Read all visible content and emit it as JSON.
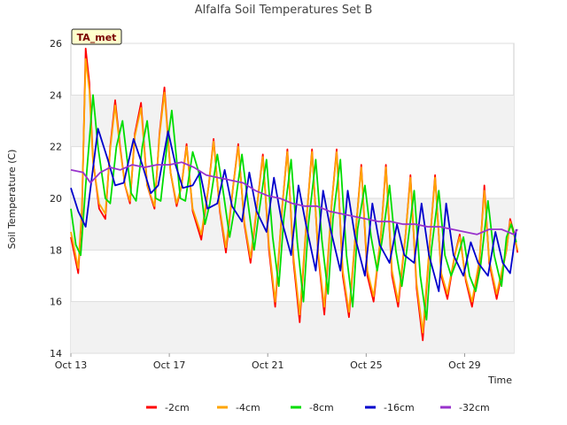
{
  "chart_data": {
    "type": "line",
    "title": "Alfalfa Soil Temperatures Set B",
    "xlabel": "Time",
    "ylabel": "Soil Temperature (C)",
    "site_tag": "TA_met",
    "xlim": [
      "Oct 13",
      "Oct 31"
    ],
    "ylim": [
      14,
      26
    ],
    "x_tick_labels": [
      "Oct 13",
      "Oct 17",
      "Oct 21",
      "Oct 25",
      "Oct 29"
    ],
    "y_tick_labels": [
      "14",
      "16",
      "18",
      "20",
      "22",
      "24",
      "26"
    ],
    "grid": true,
    "legend_position": "bottom",
    "x_unit": "days since Oct 13",
    "series": [
      {
        "name": "-2cm",
        "color": "#ff0000",
        "x": [
          0.0,
          0.15,
          0.3,
          0.45,
          0.6,
          0.75,
          0.9,
          1.15,
          1.4,
          1.6,
          1.8,
          2.0,
          2.2,
          2.4,
          2.6,
          2.85,
          3.1,
          3.4,
          3.6,
          3.8,
          4.05,
          4.3,
          4.5,
          4.7,
          4.95,
          5.3,
          5.6,
          5.8,
          6.05,
          6.3,
          6.6,
          6.8,
          7.05,
          7.3,
          7.6,
          7.8,
          8.05,
          8.3,
          8.6,
          8.8,
          9.05,
          9.3,
          9.6,
          9.8,
          10.05,
          10.3,
          10.6,
          10.8,
          11.05,
          11.3,
          11.6,
          11.8,
          12.05,
          12.3,
          12.6,
          12.8,
          13.05,
          13.3,
          13.6,
          13.8,
          14.05,
          14.3,
          14.6,
          14.8,
          15.05,
          15.3,
          15.6,
          15.8,
          16.05,
          16.3,
          16.6,
          16.8,
          17.0,
          17.3,
          17.7,
          17.85,
          18.0,
          18.15
        ],
        "values": [
          18.5,
          17.8,
          17.1,
          19.5,
          25.8,
          24.5,
          21.5,
          19.6,
          19.2,
          22.0,
          23.8,
          22.0,
          20.5,
          19.8,
          22.5,
          23.7,
          20.5,
          19.6,
          22.5,
          24.3,
          21.0,
          19.7,
          20.5,
          22.1,
          19.5,
          18.4,
          20.5,
          22.3,
          19.5,
          17.9,
          20.5,
          22.1,
          19.0,
          17.5,
          20.0,
          21.7,
          18.0,
          15.8,
          19.8,
          21.9,
          17.5,
          15.2,
          19.5,
          21.9,
          17.8,
          15.5,
          19.8,
          21.9,
          17.0,
          15.4,
          19.0,
          21.3,
          17.0,
          16.0,
          18.6,
          21.3,
          17.0,
          15.8,
          18.6,
          20.9,
          16.5,
          14.5,
          18.5,
          20.9,
          17.0,
          16.1,
          17.8,
          18.6,
          16.8,
          15.8,
          17.5,
          20.5,
          17.5,
          16.1,
          18.0,
          19.2,
          18.7,
          17.9
        ]
      },
      {
        "name": "-4cm",
        "color": "#ffa500",
        "x": [
          0.0,
          0.15,
          0.3,
          0.45,
          0.6,
          0.75,
          0.9,
          1.15,
          1.4,
          1.6,
          1.8,
          2.0,
          2.2,
          2.4,
          2.6,
          2.85,
          3.1,
          3.4,
          3.6,
          3.8,
          4.05,
          4.3,
          4.5,
          4.7,
          4.95,
          5.3,
          5.6,
          5.8,
          6.05,
          6.3,
          6.6,
          6.8,
          7.05,
          7.3,
          7.6,
          7.8,
          8.05,
          8.3,
          8.6,
          8.8,
          9.05,
          9.3,
          9.6,
          9.8,
          10.05,
          10.3,
          10.6,
          10.8,
          11.05,
          11.3,
          11.6,
          11.8,
          12.05,
          12.3,
          12.6,
          12.8,
          13.05,
          13.3,
          13.6,
          13.8,
          14.05,
          14.3,
          14.6,
          14.8,
          15.05,
          15.3,
          15.6,
          15.8,
          16.05,
          16.3,
          16.6,
          16.8,
          17.0,
          17.3,
          17.7,
          17.85,
          18.0,
          18.15
        ],
        "values": [
          18.7,
          18.0,
          17.3,
          19.7,
          25.4,
          24.2,
          21.4,
          19.8,
          19.4,
          21.9,
          23.6,
          21.9,
          20.5,
          19.9,
          22.4,
          23.5,
          20.5,
          19.7,
          22.4,
          24.1,
          21.0,
          19.8,
          20.5,
          22.0,
          19.6,
          18.6,
          20.5,
          22.2,
          19.6,
          18.1,
          20.5,
          22.0,
          19.1,
          17.7,
          20.0,
          21.6,
          18.2,
          16.0,
          19.8,
          21.8,
          17.7,
          15.5,
          19.5,
          21.8,
          17.9,
          15.8,
          19.8,
          21.8,
          17.2,
          15.6,
          19.0,
          21.2,
          17.2,
          16.2,
          18.6,
          21.2,
          17.2,
          16.0,
          18.6,
          20.8,
          16.7,
          14.8,
          18.5,
          20.8,
          17.1,
          16.3,
          17.8,
          18.5,
          16.9,
          16.0,
          17.6,
          20.3,
          17.6,
          16.3,
          18.0,
          19.1,
          18.6,
          18.0
        ]
      },
      {
        "name": "-8cm",
        "color": "#00dd00",
        "x": [
          0.0,
          0.2,
          0.4,
          0.6,
          0.9,
          1.1,
          1.4,
          1.6,
          1.85,
          2.1,
          2.45,
          2.65,
          2.9,
          3.1,
          3.45,
          3.65,
          3.9,
          4.1,
          4.45,
          4.65,
          4.95,
          5.2,
          5.45,
          5.65,
          5.95,
          6.2,
          6.45,
          6.65,
          6.95,
          7.2,
          7.45,
          7.65,
          7.95,
          8.2,
          8.45,
          8.65,
          8.95,
          9.2,
          9.45,
          9.65,
          9.95,
          10.2,
          10.45,
          10.65,
          10.95,
          11.2,
          11.45,
          11.65,
          11.95,
          12.2,
          12.45,
          12.65,
          12.95,
          13.2,
          13.45,
          13.65,
          13.95,
          14.2,
          14.45,
          14.65,
          14.95,
          15.2,
          15.45,
          15.65,
          15.95,
          16.2,
          16.45,
          16.65,
          16.95,
          17.2,
          17.5,
          17.7,
          17.9,
          18.1
        ],
        "values": [
          19.6,
          18.2,
          17.8,
          20.5,
          24.0,
          22.0,
          20.0,
          19.8,
          22.0,
          23.0,
          20.2,
          19.9,
          22.0,
          23.0,
          20.0,
          19.9,
          22.0,
          23.4,
          20.0,
          19.9,
          21.8,
          21.0,
          19.0,
          19.8,
          21.7,
          20.2,
          18.5,
          19.6,
          21.7,
          19.8,
          18.0,
          19.5,
          21.5,
          18.5,
          16.6,
          19.2,
          21.5,
          18.3,
          16.0,
          19.0,
          21.5,
          18.4,
          16.3,
          19.2,
          21.5,
          17.8,
          15.8,
          18.8,
          20.5,
          18.5,
          17.2,
          18.4,
          20.5,
          18.0,
          16.6,
          18.0,
          20.3,
          17.0,
          15.3,
          18.0,
          20.3,
          17.8,
          17.0,
          17.5,
          18.5,
          17.0,
          16.4,
          17.4,
          19.9,
          17.8,
          16.6,
          18.5,
          19.0,
          18.3
        ]
      },
      {
        "name": "-16cm",
        "color": "#0000cc",
        "x": [
          0.0,
          0.3,
          0.6,
          1.1,
          1.5,
          1.8,
          2.15,
          2.55,
          2.9,
          3.25,
          3.55,
          3.95,
          4.25,
          4.55,
          4.95,
          5.25,
          5.55,
          5.95,
          6.25,
          6.55,
          6.95,
          7.25,
          7.55,
          7.95,
          8.25,
          8.55,
          8.95,
          9.25,
          9.55,
          9.95,
          10.25,
          10.55,
          10.95,
          11.25,
          11.55,
          11.95,
          12.25,
          12.55,
          12.95,
          13.25,
          13.55,
          13.95,
          14.25,
          14.55,
          14.95,
          15.25,
          15.55,
          15.95,
          16.25,
          16.55,
          16.95,
          17.25,
          17.55,
          17.85,
          18.1
        ],
        "values": [
          20.4,
          19.5,
          18.9,
          22.7,
          21.5,
          20.5,
          20.6,
          22.3,
          21.3,
          20.2,
          20.5,
          22.6,
          21.3,
          20.4,
          20.5,
          21.0,
          19.6,
          19.8,
          21.1,
          19.7,
          19.1,
          21.0,
          19.5,
          18.7,
          20.8,
          19.2,
          17.8,
          20.5,
          19.0,
          17.2,
          20.3,
          18.8,
          17.2,
          20.3,
          18.5,
          17.0,
          19.8,
          18.2,
          17.5,
          19.0,
          17.8,
          17.5,
          19.8,
          17.8,
          16.4,
          19.8,
          17.8,
          17.0,
          18.3,
          17.5,
          17.0,
          18.7,
          17.5,
          17.1,
          18.8
        ]
      },
      {
        "name": "-32cm",
        "color": "#9933cc",
        "x": [
          0.0,
          0.5,
          0.8,
          1.2,
          1.6,
          2.0,
          2.5,
          3.0,
          3.5,
          4.0,
          4.5,
          5.0,
          5.5,
          6.0,
          6.5,
          7.0,
          7.5,
          8.0,
          8.5,
          9.0,
          9.5,
          10.0,
          10.5,
          11.0,
          11.5,
          12.0,
          12.5,
          13.0,
          13.5,
          14.0,
          14.5,
          15.0,
          15.5,
          16.0,
          16.5,
          17.0,
          17.5,
          18.0,
          18.15
        ],
        "values": [
          21.1,
          21.0,
          20.6,
          21.0,
          21.2,
          21.1,
          21.3,
          21.2,
          21.3,
          21.3,
          21.4,
          21.2,
          20.9,
          20.8,
          20.7,
          20.6,
          20.3,
          20.1,
          20.0,
          19.8,
          19.7,
          19.7,
          19.5,
          19.4,
          19.3,
          19.2,
          19.1,
          19.1,
          19.0,
          19.0,
          18.9,
          18.9,
          18.8,
          18.7,
          18.6,
          18.8,
          18.8,
          18.6,
          18.8
        ]
      }
    ]
  }
}
